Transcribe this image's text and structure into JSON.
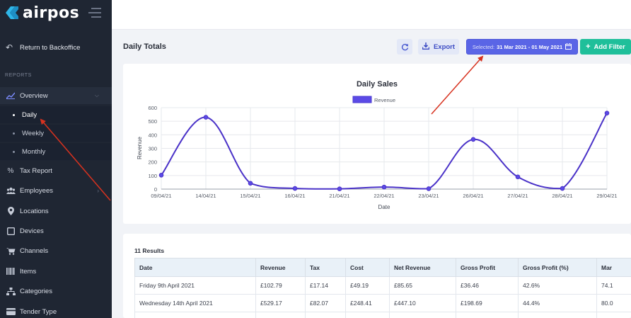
{
  "app": {
    "brand": "airpos",
    "back_label": "Return to Backoffice",
    "section_label": "REPORTS"
  },
  "sidebar": {
    "items": [
      {
        "label": "Overview",
        "icon": "chart-line-icon"
      },
      {
        "label": "Tax Report",
        "icon": "percent-icon"
      },
      {
        "label": "Employees",
        "icon": "users-icon"
      },
      {
        "label": "Locations",
        "icon": "map-pin-icon"
      },
      {
        "label": "Devices",
        "icon": "tablet-icon"
      },
      {
        "label": "Channels",
        "icon": "cart-icon"
      },
      {
        "label": "Items",
        "icon": "barcode-icon"
      },
      {
        "label": "Categories",
        "icon": "sitemap-icon"
      },
      {
        "label": "Tender Type",
        "icon": "card-icon"
      }
    ],
    "sub_items": [
      {
        "label": "Daily"
      },
      {
        "label": "Weekly"
      },
      {
        "label": "Monthly"
      }
    ]
  },
  "header": {
    "title": "Daily Totals",
    "export_label": "Export",
    "selected_label": "Selected:",
    "date_range": "31 Mar 2021 - 01 May 2021",
    "add_filter_label": "Add Filter"
  },
  "chart_data": {
    "type": "line",
    "title": "Daily Sales",
    "xlabel": "Date",
    "ylabel": "Revenue",
    "ylim": [
      0,
      600
    ],
    "yticks": [
      0,
      100,
      200,
      300,
      400,
      500,
      600
    ],
    "grid": true,
    "legend_position": "top-center",
    "series": [
      {
        "name": "Revenue",
        "color": "#5b4ae6",
        "x": [
          "09/04/21",
          "14/04/21",
          "15/04/21",
          "16/04/21",
          "21/04/21",
          "22/04/21",
          "23/04/21",
          "26/04/21",
          "27/04/21",
          "28/04/21",
          "29/04/21"
        ],
        "values": [
          102.79,
          529.17,
          43,
          5,
          2,
          15,
          3,
          366,
          90,
          5,
          560
        ]
      }
    ]
  },
  "results": {
    "count_label": "11 Results",
    "columns": [
      "Date",
      "Revenue",
      "Tax",
      "Cost",
      "Net Revenue",
      "Gross Profit",
      "Gross Profit (%)",
      "Mar"
    ],
    "rows": [
      [
        "Friday 9th April 2021",
        "£102.79",
        "£17.14",
        "£49.19",
        "£85.65",
        "£36.46",
        "42.6%",
        "74.1"
      ],
      [
        "Wednesday 14th April 2021",
        "£529.17",
        "£82.07",
        "£248.41",
        "£447.10",
        "£198.69",
        "44.4%",
        "80.0"
      ],
      [
        "",
        "",
        "",
        "",
        "",
        "",
        "",
        ""
      ]
    ]
  }
}
